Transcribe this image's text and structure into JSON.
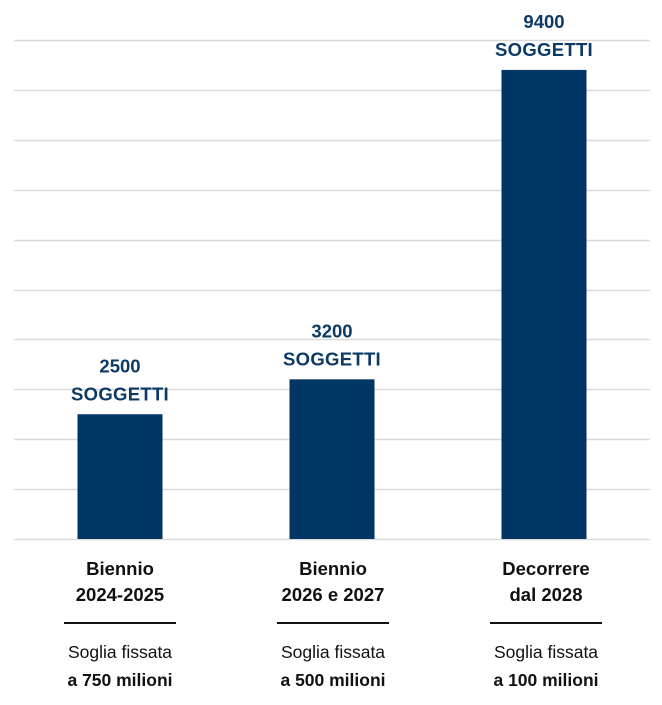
{
  "colors": {
    "bar": "#003663",
    "label": "#0d3a64",
    "grid": "#d9d9d9",
    "text": "#111111"
  },
  "chart_data": {
    "type": "bar",
    "categories": [
      "Biennio 2024-2025",
      "Biennio 2026 e 2027",
      "Decorrere dal 2028"
    ],
    "values": [
      2500,
      3200,
      9400
    ],
    "data_labels": [
      {
        "value": "2500",
        "unit": "SOGGETTI"
      },
      {
        "value": "3200",
        "unit": "SOGGETTI"
      },
      {
        "value": "9400",
        "unit": "SOGGETTI"
      }
    ],
    "ylim": [
      0,
      10000
    ],
    "gridlines": true,
    "title": "",
    "xlabel": "",
    "ylabel": ""
  },
  "categories": [
    {
      "title": "Biennio\n2024-2025",
      "sub": "Soglia fissata",
      "sub_strong": "a 750 milioni"
    },
    {
      "title": "Biennio\n2026 e 2027",
      "sub": "Soglia fissata",
      "sub_strong": "a 500 milioni"
    },
    {
      "title": "Decorrere\ndal 2028",
      "sub": "Soglia fissata",
      "sub_strong": "a 100 milioni"
    }
  ]
}
